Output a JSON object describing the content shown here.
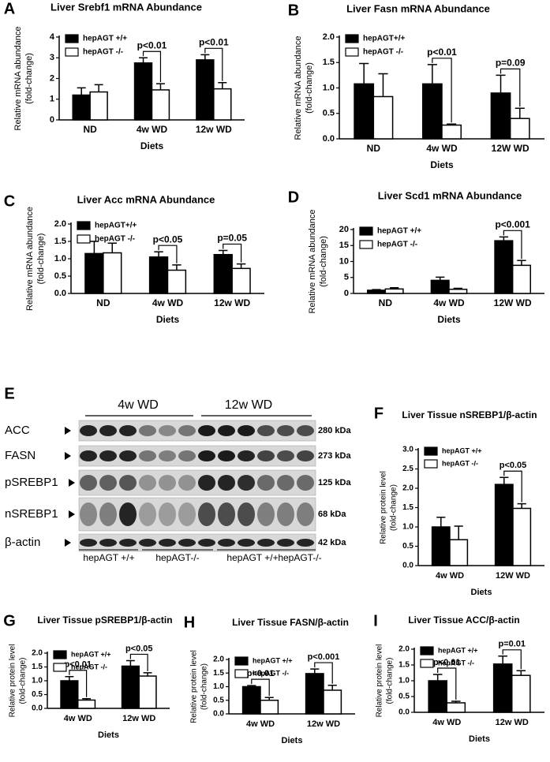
{
  "chart_data": [
    {
      "type": "bar",
      "panel": "A",
      "title": "Liver Srebf1 mRNA Abundance",
      "ylabel": [
        "Relative mRNA abundance",
        "(fold-change)"
      ],
      "xlabel": "Diets",
      "categories": [
        "ND",
        "4w WD",
        "12w WD"
      ],
      "ylim": [
        0,
        4
      ],
      "yticks": [
        0,
        1,
        2,
        3,
        4
      ],
      "legend": "upper left",
      "series": [
        {
          "name": "hepAGT +/+",
          "color": "#000000",
          "values": [
            1.2,
            2.75,
            2.9
          ],
          "errors": [
            0.35,
            0.25,
            0.25
          ]
        },
        {
          "name": "hepAGT -/-",
          "color": "#ffffff",
          "values": [
            1.35,
            1.45,
            1.5
          ],
          "errors": [
            0.35,
            0.3,
            0.3
          ]
        }
      ],
      "pvalues": [
        null,
        "p<0.01",
        "p<0.01"
      ]
    },
    {
      "type": "bar",
      "panel": "B",
      "title": "Liver Fasn mRNA Abundance",
      "ylabel": [
        "Relative mRNA abundance",
        "(fold-change)"
      ],
      "xlabel": "Diets",
      "categories": [
        "ND",
        "4w WD",
        "12W WD"
      ],
      "ylim": [
        0,
        2
      ],
      "yticks": [
        {
          "value": 0,
          "label": "0.0"
        },
        0.5,
        {
          "value": 1,
          "label": "1.0"
        },
        1.5,
        {
          "value": 2,
          "label": "2.0"
        }
      ],
      "legend": "upper left",
      "series": [
        {
          "name": "hepAGT+/+",
          "color": "#000000",
          "values": [
            1.08,
            1.08,
            0.9
          ],
          "errors": [
            0.4,
            0.38,
            0.35
          ]
        },
        {
          "name": "hepAGT -/-",
          "color": "#ffffff",
          "values": [
            0.83,
            0.27,
            0.4
          ],
          "errors": [
            0.45,
            0.02,
            0.2
          ]
        }
      ],
      "pvalues": [
        null,
        "p<0.01",
        "p=0.09"
      ]
    },
    {
      "type": "bar",
      "panel": "C",
      "title": "Liver Acc mRNA Abundance",
      "ylabel": [
        "Relative mRNA abundance",
        "(fold-change)"
      ],
      "xlabel": "Diets",
      "categories": [
        "ND",
        "4w WD",
        "12w WD"
      ],
      "ylim": [
        0,
        2
      ],
      "yticks": [
        {
          "value": 0,
          "label": "0.0"
        },
        0.5,
        {
          "value": 1,
          "label": "1.0"
        },
        1.5,
        {
          "value": 2,
          "label": "2.0"
        }
      ],
      "legend": "upper left",
      "series": [
        {
          "name": "hepAGT+/+",
          "color": "#000000",
          "values": [
            1.15,
            1.05,
            1.12
          ],
          "errors": [
            0.35,
            0.15,
            0.12
          ]
        },
        {
          "name": "hepAGT -/-",
          "color": "#ffffff",
          "values": [
            1.17,
            0.67,
            0.72
          ],
          "errors": [
            0.28,
            0.15,
            0.13
          ]
        }
      ],
      "pvalues": [
        null,
        "p<0.05",
        "p=0.05"
      ]
    },
    {
      "type": "bar",
      "panel": "D",
      "title": "Liver Scd1 mRNA Abundance",
      "ylabel": [
        "Relative mRNA abundance",
        "(fold-change)"
      ],
      "xlabel": "Diets",
      "categories": [
        "ND",
        "4w WD",
        "12W WD"
      ],
      "ylim": [
        0,
        20
      ],
      "yticks": [
        0,
        5,
        10,
        15,
        20
      ],
      "legend": "upper left",
      "series": [
        {
          "name": "hepAGT +/+",
          "color": "#000000",
          "values": [
            1,
            4.1,
            16.5
          ],
          "errors": [
            0.2,
            1,
            1.2
          ]
        },
        {
          "name": "hepAGT -/-",
          "color": "#ffffff",
          "values": [
            1.4,
            1.3,
            8.8
          ],
          "errors": [
            0.4,
            0.3,
            1.5
          ]
        }
      ],
      "pvalues": [
        null,
        null,
        "p<0.001"
      ]
    },
    {
      "type": "bar",
      "panel": "F",
      "title": "Liver Tissue nSREBP1/β-actin",
      "ylabel": [
        "Relative protein level",
        "(fold-change)"
      ],
      "xlabel": "Diets",
      "categories": [
        "4w WD",
        "12W WD"
      ],
      "ylim": [
        0,
        3
      ],
      "yticks": [
        {
          "value": 0,
          "label": "0.0"
        },
        0.5,
        {
          "value": 1,
          "label": "1.0"
        },
        1.5,
        {
          "value": 2,
          "label": "2.0"
        },
        2.5,
        {
          "value": 3,
          "label": "3.0"
        }
      ],
      "legend": "upper left",
      "series": [
        {
          "name": "hepAGT +/+",
          "color": "#000000",
          "values": [
            1.0,
            2.1
          ],
          "errors": [
            0.25,
            0.18
          ]
        },
        {
          "name": "hepAGT -/-",
          "color": "#ffffff",
          "values": [
            0.67,
            1.48
          ],
          "errors": [
            0.35,
            0.12
          ]
        }
      ],
      "pvalues": [
        null,
        "p<0.05"
      ]
    },
    {
      "type": "bar",
      "panel": "G",
      "title": "Liver Tissue pSREBP1/β-actin",
      "ylabel": [
        "Relative protein level",
        "(fold-change)"
      ],
      "xlabel": "Diets",
      "categories": [
        "4w WD",
        "12w WD"
      ],
      "ylim": [
        0,
        2
      ],
      "yticks": [
        {
          "value": 0,
          "label": "0.0"
        },
        0.5,
        {
          "value": 1,
          "label": "1.0"
        },
        1.5,
        {
          "value": 2,
          "label": "2.0"
        }
      ],
      "legend": "upper left",
      "series": [
        {
          "name": "hepAGT +/+",
          "color": "#000000",
          "values": [
            1.0,
            1.53
          ],
          "errors": [
            0.15,
            0.2
          ]
        },
        {
          "name": "hepAGT -/-",
          "color": "#ffffff",
          "values": [
            0.3,
            1.17
          ],
          "errors": [
            0.05,
            0.12
          ]
        }
      ],
      "pvalues": [
        "p<0.01",
        "p<0.05"
      ]
    },
    {
      "type": "bar",
      "panel": "H",
      "title": "Liver Tissue FASN/β-actin",
      "ylabel": [
        "Relative protein level",
        "(fold-change)"
      ],
      "xlabel": "Diets",
      "categories": [
        "4w WD",
        "12w WD"
      ],
      "ylim": [
        0,
        2
      ],
      "yticks": [
        {
          "value": 0,
          "label": "0.0"
        },
        0.5,
        {
          "value": 1,
          "label": "1.0"
        },
        1.5,
        {
          "value": 2,
          "label": "2.0"
        }
      ],
      "legend": "upper left",
      "series": [
        {
          "name": "hepAGT +/+",
          "color": "#000000",
          "values": [
            1.0,
            1.48
          ],
          "errors": [
            0.04,
            0.17
          ]
        },
        {
          "name": "hepAGT -/-",
          "color": "#ffffff",
          "values": [
            0.5,
            0.87
          ],
          "errors": [
            0.1,
            0.18
          ]
        }
      ],
      "pvalues": [
        "p<0.01",
        "p<0.001"
      ]
    },
    {
      "type": "bar",
      "panel": "I",
      "title": "Liver Tissue ACC/β-actin",
      "ylabel": [
        "Relative protein level",
        "(fold-change)"
      ],
      "xlabel": "Diets",
      "categories": [
        "4w WD",
        "12w WD"
      ],
      "ylim": [
        0,
        2
      ],
      "yticks": [
        {
          "value": 0,
          "label": "0.0"
        },
        0.5,
        {
          "value": 1,
          "label": "1.0"
        },
        1.5,
        {
          "value": 2,
          "label": "2.0"
        }
      ],
      "legend": "upper left",
      "series": [
        {
          "name": "hepAGT +/+",
          "color": "#000000",
          "values": [
            1.0,
            1.53
          ],
          "errors": [
            0.2,
            0.25
          ]
        },
        {
          "name": "hepAGT -/-",
          "color": "#ffffff",
          "values": [
            0.3,
            1.17
          ],
          "errors": [
            0.05,
            0.15
          ]
        }
      ],
      "pvalues": [
        "p<0.01",
        "p=0.01"
      ]
    }
  ],
  "blot": {
    "panel": "E",
    "periods": [
      "4w WD",
      "12w WD"
    ],
    "proteins": [
      "ACC",
      "FASN",
      "pSREBP1",
      "nSREBP1",
      "β-actin"
    ],
    "sizes": [
      "280 kDa",
      "273 kDa",
      "125 kDa",
      "68 kDa",
      "42 kDa"
    ],
    "groups": [
      "hepAGT +/+",
      "hepAGT-/-",
      "hepAGT +/+",
      "hepAGT-/-"
    ]
  }
}
